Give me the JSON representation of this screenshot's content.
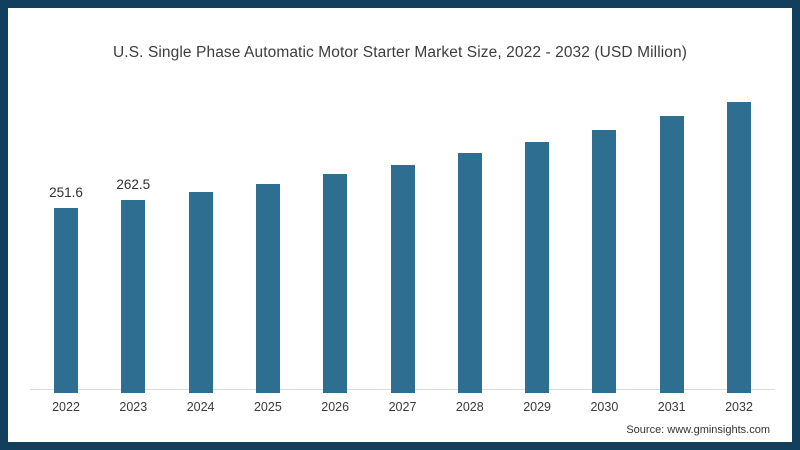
{
  "title": "U.S. Single Phase Automatic Motor Starter Market Size, 2022 - 2032 (USD Million)",
  "source": "Source: www.gminsights.com",
  "colors": {
    "bar": "#2e6f91",
    "frame": "#123f5e",
    "axis_line": "#dcdcdc",
    "text": "#3c3c3c"
  },
  "chart_data": {
    "type": "bar",
    "title": "U.S. Single Phase Automatic Motor Starter Market Size, 2022 - 2032 (USD Million)",
    "categories": [
      "2022",
      "2023",
      "2024",
      "2025",
      "2026",
      "2027",
      "2028",
      "2029",
      "2030",
      "2031",
      "2032"
    ],
    "values": [
      251.6,
      262.5,
      272.8,
      283.9,
      297.4,
      310.5,
      326.3,
      341.4,
      357.8,
      376.3,
      395.5
    ],
    "value_labels": [
      "251.6",
      "262.5",
      "",
      "",
      "",
      "",
      "",
      "",
      "",
      "",
      ""
    ],
    "xlabel": "",
    "ylabel": "",
    "ylim": [
      0,
      420
    ],
    "grid": false,
    "legend": false,
    "yaxis_visible": false
  }
}
